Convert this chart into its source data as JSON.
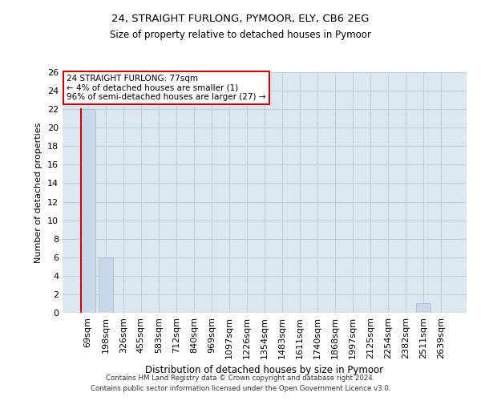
{
  "title1": "24, STRAIGHT FURLONG, PYMOOR, ELY, CB6 2EG",
  "title2": "Size of property relative to detached houses in Pymoor",
  "xlabel": "Distribution of detached houses by size in Pymoor",
  "ylabel": "Number of detached properties",
  "categories": [
    "69sqm",
    "198sqm",
    "326sqm",
    "455sqm",
    "583sqm",
    "712sqm",
    "840sqm",
    "969sqm",
    "1097sqm",
    "1226sqm",
    "1354sqm",
    "1483sqm",
    "1611sqm",
    "1740sqm",
    "1868sqm",
    "1997sqm",
    "2125sqm",
    "2254sqm",
    "2382sqm",
    "2511sqm",
    "2639sqm"
  ],
  "values": [
    22,
    6,
    0,
    0,
    0,
    0,
    0,
    0,
    0,
    0,
    0,
    0,
    0,
    0,
    0,
    0,
    0,
    0,
    0,
    1,
    0
  ],
  "bar_color": "#c8d8e8",
  "highlight_bar_index": 0,
  "highlight_left_color": "#cc0000",
  "annotation_text": "24 STRAIGHT FURLONG: 77sqm\n← 4% of detached houses are smaller (1)\n96% of semi-detached houses are larger (27) →",
  "annotation_box_color": "#ffffff",
  "annotation_box_edgecolor": "#cc0000",
  "ylim": [
    0,
    26
  ],
  "yticks": [
    0,
    2,
    4,
    6,
    8,
    10,
    12,
    14,
    16,
    18,
    20,
    22,
    24,
    26
  ],
  "grid_color": "#c0cfe0",
  "bg_color": "#dce8f0",
  "footer1": "Contains HM Land Registry data © Crown copyright and database right 2024.",
  "footer2": "Contains public sector information licensed under the Open Government Licence v3.0."
}
